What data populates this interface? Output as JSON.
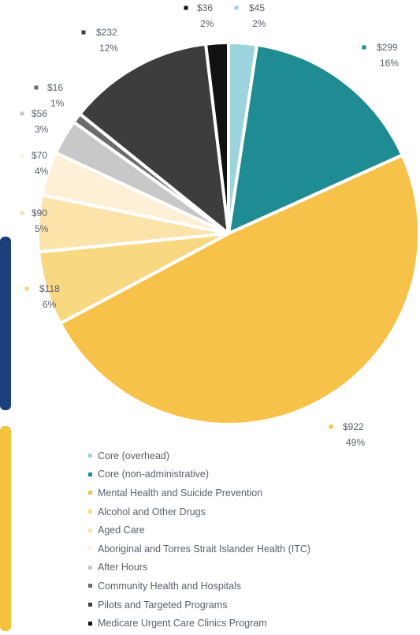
{
  "colors": {
    "core_overhead": "#9dd3dc",
    "core_non_admin": "#1f8c93",
    "mental_health": "#f6c24a",
    "aod": "#f9d882",
    "aged_care": "#fbe3aa",
    "atsi_health": "#fdf0d6",
    "after_hours": "#c8c8c8",
    "community_health": "#6b6b6b",
    "pilots": "#3d3d3d",
    "medicare_ucc": "#111111",
    "edge_navy": "#1b3f7a",
    "edge_yellow": "#f4c23d"
  },
  "chart_data": {
    "type": "pie",
    "slices": [
      {
        "key": "core_overhead",
        "label": "Core (overhead)",
        "value": 45,
        "amount": "$45",
        "percent": "2%"
      },
      {
        "key": "core_non_admin",
        "label": "Core (non-administrative)",
        "value": 299,
        "amount": "$299",
        "percent": "16%"
      },
      {
        "key": "mental_health",
        "label": "Mental Health and Suicide Prevention",
        "value": 922,
        "amount": "$922",
        "percent": "49%"
      },
      {
        "key": "aod",
        "label": "Alcohol and Other Drugs",
        "value": 118,
        "amount": "$118",
        "percent": "6%"
      },
      {
        "key": "aged_care",
        "label": "Aged Care",
        "value": 90,
        "amount": "$90",
        "percent": "5%"
      },
      {
        "key": "atsi_health",
        "label": "Aboriginal and Torres Strait Islander Health (ITC)",
        "value": 70,
        "amount": "$70",
        "percent": "4%"
      },
      {
        "key": "after_hours",
        "label": "After Hours",
        "value": 56,
        "amount": "$56",
        "percent": "3%"
      },
      {
        "key": "community_health",
        "label": "Community Health and Hospitals",
        "value": 16,
        "amount": "$16",
        "percent": "1%"
      },
      {
        "key": "pilots",
        "label": "Pilots and Targeted Programs",
        "value": 232,
        "amount": "$232",
        "percent": "12%"
      },
      {
        "key": "medicare_ucc",
        "label": "Medicare Urgent Care Clinics Program",
        "value": 36,
        "amount": "$36",
        "percent": "2%"
      }
    ],
    "legend_placement": "bottom"
  }
}
